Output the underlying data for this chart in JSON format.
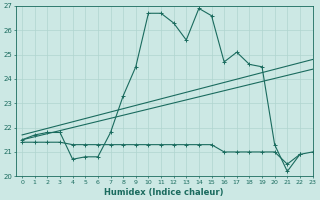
{
  "xlabel": "Humidex (Indice chaleur)",
  "ylabel": "",
  "xlim": [
    -0.5,
    23
  ],
  "ylim": [
    20,
    27
  ],
  "yticks": [
    20,
    21,
    22,
    23,
    24,
    25,
    26,
    27
  ],
  "xticks": [
    0,
    1,
    2,
    3,
    4,
    5,
    6,
    7,
    8,
    9,
    10,
    11,
    12,
    13,
    14,
    15,
    16,
    17,
    18,
    19,
    20,
    21,
    22,
    23
  ],
  "bg_color": "#cce8e4",
  "grid_color": "#b0d5cf",
  "line_color": "#1a6b5e",
  "series1_x": [
    0,
    1,
    2,
    3,
    4,
    5,
    6,
    7,
    8,
    9,
    10,
    11,
    12,
    13,
    14,
    15,
    16,
    17,
    18,
    19,
    20,
    21,
    22
  ],
  "series1_y": [
    21.5,
    21.7,
    21.8,
    21.8,
    20.7,
    20.8,
    20.8,
    21.8,
    23.3,
    24.5,
    26.7,
    26.7,
    26.3,
    25.6,
    26.9,
    26.6,
    24.7,
    25.1,
    24.6,
    24.5,
    21.3,
    20.2,
    20.9
  ],
  "series2_x": [
    0,
    1,
    2,
    3,
    4,
    5,
    6,
    7,
    8,
    9,
    10,
    11,
    12,
    13,
    14,
    15,
    16,
    17,
    18,
    19,
    20,
    21,
    22,
    23
  ],
  "series2_y": [
    21.4,
    21.4,
    21.4,
    21.4,
    21.3,
    21.3,
    21.3,
    21.3,
    21.3,
    21.3,
    21.3,
    21.3,
    21.3,
    21.3,
    21.3,
    21.3,
    21.0,
    21.0,
    21.0,
    21.0,
    21.0,
    20.5,
    20.9,
    21.0
  ],
  "trend1_x": [
    0,
    23
  ],
  "trend1_y": [
    21.5,
    24.4
  ],
  "trend2_x": [
    0,
    23
  ],
  "trend2_y": [
    21.7,
    24.8
  ]
}
